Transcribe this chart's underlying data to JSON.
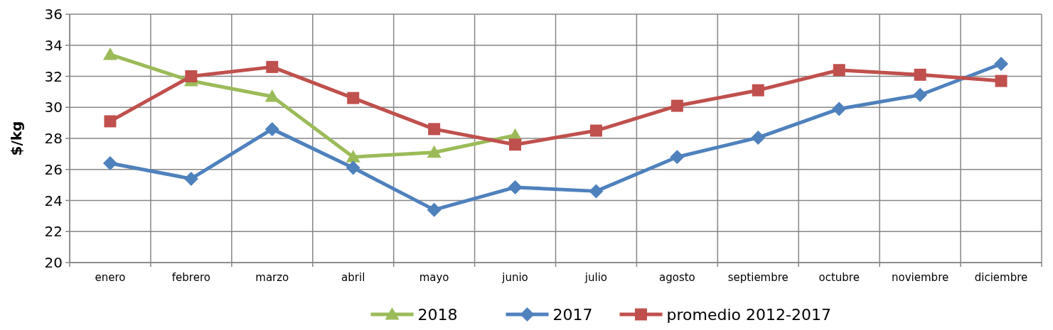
{
  "chart_data": {
    "type": "line",
    "ylabel": "$/kg",
    "categories": [
      "enero",
      "febrero",
      "marzo",
      "abril",
      "mayo",
      "junio",
      "julio",
      "agosto",
      "septiembre",
      "octubre",
      "noviembre",
      "diciembre"
    ],
    "series": [
      {
        "name": "2018",
        "color": "#9bbb59",
        "marker": "triangle",
        "values": [
          33.4,
          31.7,
          30.7,
          26.8,
          27.1,
          28.2,
          null,
          null,
          null,
          null,
          null,
          null
        ]
      },
      {
        "name": "2017",
        "color": "#4f81bd",
        "marker": "diamond",
        "values": [
          26.4,
          25.4,
          28.6,
          26.1,
          23.4,
          24.85,
          24.6,
          26.8,
          28.05,
          29.9,
          30.8,
          32.8
        ]
      },
      {
        "name": "promedio 2012-2017",
        "color": "#c0504d",
        "marker": "square",
        "values": [
          29.1,
          32.0,
          32.6,
          30.6,
          28.6,
          27.6,
          28.5,
          30.1,
          31.1,
          32.4,
          32.1,
          31.7
        ]
      }
    ],
    "ylim": [
      20,
      36
    ],
    "yticks": [
      20,
      22,
      24,
      26,
      28,
      30,
      32,
      34,
      36
    ],
    "grid": true,
    "legend": "bottom"
  }
}
